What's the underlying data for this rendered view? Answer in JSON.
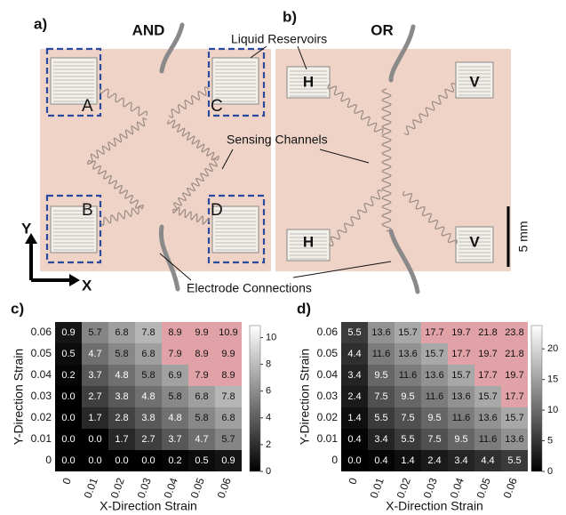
{
  "photo": {
    "panel_a": "a)",
    "panel_b": "b)",
    "title_a": "AND",
    "title_b": "OR",
    "liquid_reservoirs": "Liquid Reservoirs",
    "sensing_channels": "Sensing Channels",
    "electrode_connections": "Electrode Connections",
    "labels_a": [
      "A",
      "B",
      "C",
      "D"
    ],
    "labels_b": [
      "H",
      "H",
      "V",
      "V"
    ],
    "axis_y": "Y",
    "axis_x": "X",
    "scale_bar": "5 mm"
  },
  "chart_data": [
    {
      "type": "heatmap",
      "panel": "c)",
      "xlabel": "X-Direction Strain",
      "ylabel": "Y-Direction Strain",
      "x_categories": [
        "0",
        "0.01",
        "0.02",
        "0.03",
        "0.04",
        "0.05",
        "0.06"
      ],
      "y_categories": [
        "0.06",
        "0.05",
        "0.04",
        "0.03",
        "0.02",
        "0.01",
        "0"
      ],
      "values": [
        [
          0.9,
          5.7,
          6.8,
          7.8,
          8.9,
          9.9,
          10.9
        ],
        [
          0.5,
          4.7,
          5.8,
          6.8,
          7.9,
          8.9,
          9.9
        ],
        [
          0.2,
          3.7,
          4.8,
          5.8,
          6.9,
          7.9,
          8.9
        ],
        [
          0,
          2.7,
          3.8,
          4.8,
          5.8,
          6.8,
          7.8
        ],
        [
          0,
          1.7,
          2.8,
          3.8,
          4.8,
          5.8,
          6.8
        ],
        [
          0,
          0,
          1.7,
          2.7,
          3.7,
          4.7,
          5.7
        ],
        [
          0,
          0,
          0,
          0,
          0.2,
          0.5,
          0.9
        ]
      ],
      "value_labels": [
        [
          "0.9",
          "5.7",
          "6.8",
          "7.8",
          "8.9",
          "9.9",
          "10.9"
        ],
        [
          "0.5",
          "4.7",
          "5.8",
          "6.8",
          "7.9",
          "8.9",
          "9.9"
        ],
        [
          "0.2",
          "3.7",
          "4.8",
          "5.8",
          "6.9",
          "7.9",
          "8.9"
        ],
        [
          "0.0",
          "2.7",
          "3.8",
          "4.8",
          "5.8",
          "6.8",
          "7.8"
        ],
        [
          "0.0",
          "1.7",
          "2.8",
          "3.8",
          "4.8",
          "5.8",
          "6.8"
        ],
        [
          "0.0",
          "0.0",
          "1.7",
          "2.7",
          "3.7",
          "4.7",
          "5.7"
        ],
        [
          "0.0",
          "0.0",
          "0.0",
          "0.0",
          "0.2",
          "0.5",
          "0.9"
        ]
      ],
      "colormap": "gray",
      "clim": [
        0,
        10.9
      ],
      "colorbar_ticks": [
        0,
        2,
        4,
        6,
        8,
        10
      ],
      "highlight_min": 7.9,
      "highlight_color": "#e0a2a7"
    },
    {
      "type": "heatmap",
      "panel": "d)",
      "xlabel": "X-Direction Strain",
      "ylabel": "Y-Direction Strain",
      "x_categories": [
        "0",
        "0.01",
        "0.02",
        "0.03",
        "0.04",
        "0.05",
        "0.06"
      ],
      "y_categories": [
        "0.06",
        "0.05",
        "0.04",
        "0.03",
        "0.02",
        "0.01",
        "0"
      ],
      "values": [
        [
          5.5,
          13.6,
          15.7,
          17.7,
          19.7,
          21.8,
          23.8
        ],
        [
          4.4,
          11.6,
          13.6,
          15.7,
          17.7,
          19.7,
          21.8
        ],
        [
          3.4,
          9.5,
          11.6,
          13.6,
          15.7,
          17.7,
          19.7
        ],
        [
          2.4,
          7.5,
          9.5,
          11.6,
          13.6,
          15.7,
          17.7
        ],
        [
          1.4,
          5.5,
          7.5,
          9.5,
          11.6,
          13.6,
          15.7
        ],
        [
          0.4,
          3.4,
          5.5,
          7.5,
          9.5,
          11.6,
          13.6
        ],
        [
          0,
          0.4,
          1.4,
          2.4,
          3.4,
          4.4,
          5.5
        ]
      ],
      "value_labels": [
        [
          "5.5",
          "13.6",
          "15.7",
          "17.7",
          "19.7",
          "21.8",
          "23.8"
        ],
        [
          "4.4",
          "11.6",
          "13.6",
          "15.7",
          "17.7",
          "19.7",
          "21.8"
        ],
        [
          "3.4",
          "9.5",
          "11.6",
          "13.6",
          "15.7",
          "17.7",
          "19.7"
        ],
        [
          "2.4",
          "7.5",
          "9.5",
          "11.6",
          "13.6",
          "15.7",
          "17.7"
        ],
        [
          "1.4",
          "5.5",
          "7.5",
          "9.5",
          "11.6",
          "13.6",
          "15.7"
        ],
        [
          "0.4",
          "3.4",
          "5.5",
          "7.5",
          "9.5",
          "11.6",
          "13.6"
        ],
        [
          "0.0",
          "0.4",
          "1.4",
          "2.4",
          "3.4",
          "4.4",
          "5.5"
        ]
      ],
      "colormap": "gray",
      "clim": [
        0,
        23.8
      ],
      "colorbar_ticks": [
        0,
        5,
        10,
        15,
        20
      ],
      "highlight_min": 17.7,
      "highlight_color": "#e0a2a7"
    }
  ]
}
